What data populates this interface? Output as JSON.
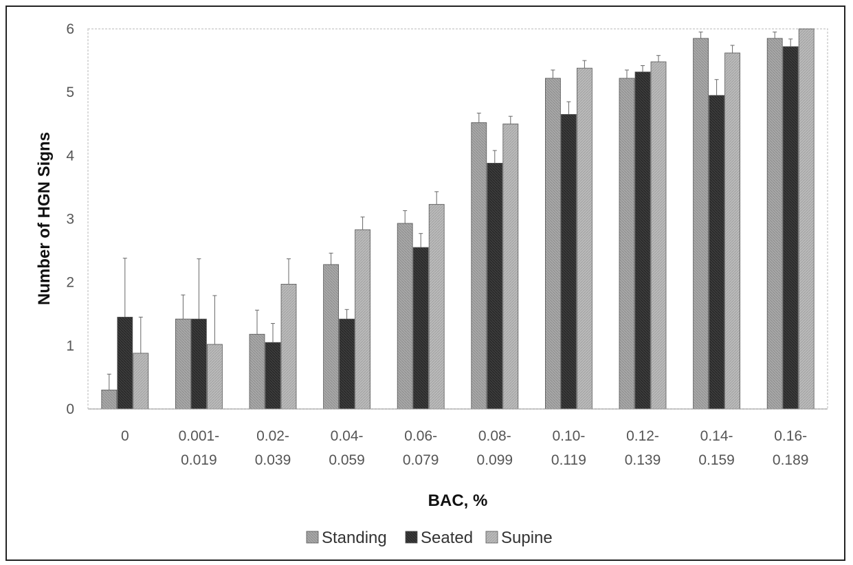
{
  "chart_data": {
    "type": "bar",
    "title": "",
    "xlabel": "BAC, %",
    "ylabel": "Number of HGN Signs",
    "ylim": [
      0,
      6
    ],
    "yticks": [
      "0",
      "1",
      "2",
      "3",
      "4",
      "5",
      "6"
    ],
    "grid": false,
    "legend_position": "bottom",
    "categories": [
      [
        "0"
      ],
      [
        "0.001-",
        "0.019"
      ],
      [
        "0.02-",
        "0.039"
      ],
      [
        "0.04-",
        "0.059"
      ],
      [
        "0.06-",
        "0.079"
      ],
      [
        "0.08-",
        "0.099"
      ],
      [
        "0.10-",
        "0.119"
      ],
      [
        "0.12-",
        "0.139"
      ],
      [
        "0.14-",
        "0.159"
      ],
      [
        "0.16-",
        "0.189"
      ]
    ],
    "series": [
      {
        "name": "Standing",
        "color": "#a8a8a8",
        "values": [
          0.3,
          1.42,
          1.18,
          2.28,
          2.93,
          4.52,
          5.22,
          5.22,
          5.85,
          5.85
        ],
        "error": [
          0.25,
          0.38,
          0.38,
          0.18,
          0.2,
          0.15,
          0.13,
          0.13,
          0.1,
          0.1
        ]
      },
      {
        "name": "Seated",
        "color": "#3a3a3a",
        "values": [
          1.45,
          1.42,
          1.05,
          1.42,
          2.55,
          3.88,
          4.65,
          5.32,
          4.95,
          5.72
        ],
        "error": [
          0.93,
          0.95,
          0.3,
          0.15,
          0.22,
          0.2,
          0.2,
          0.1,
          0.25,
          0.12
        ]
      },
      {
        "name": "Supine",
        "color": "#b8b8b8",
        "values": [
          0.88,
          1.02,
          1.97,
          2.83,
          3.23,
          4.5,
          5.38,
          5.48,
          5.62,
          6.0
        ],
        "error": [
          0.57,
          0.77,
          0.4,
          0.2,
          0.2,
          0.12,
          0.12,
          0.1,
          0.12,
          0.0
        ]
      }
    ]
  }
}
